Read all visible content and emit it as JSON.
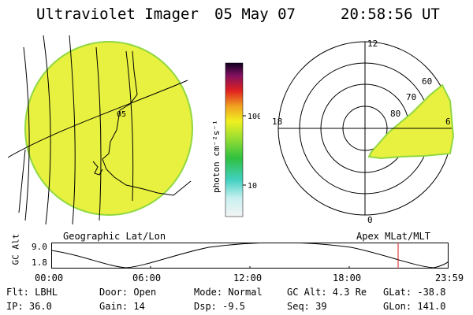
{
  "header": {
    "title": "Ultraviolet Imager",
    "date": "05 May 07",
    "time": "20:58:56 UT"
  },
  "geo_panel": {
    "caption": "Geographic Lat/Lon",
    "grid_label": "05"
  },
  "colorbar": {
    "unit_label": "photon cm⁻²s⁻¹",
    "ticks": [
      "100",
      "10"
    ]
  },
  "polar_panel": {
    "caption": "Apex MLat/MLT",
    "mlt_labels": [
      "12",
      "18",
      "6",
      "0"
    ],
    "mlat_labels": [
      "60",
      "70",
      "80"
    ]
  },
  "altitude_plot": {
    "ylabel": "GC Alt",
    "y_ticks": [
      "9.0",
      "1.8"
    ],
    "x_ticks": [
      "00:00",
      "06:00",
      "12:00",
      "18:00",
      "23:59"
    ]
  },
  "info": {
    "flt": "Flt: LBHL",
    "ip": "IP: 36.0",
    "door": "Door: Open",
    "gain": "Gain: 14",
    "mode": "Mode: Normal",
    "dsp": "Dsp:   -9.5",
    "gc_alt": "GC Alt: 4.3 Re",
    "seq": "Seq: 39",
    "glat": "GLat: -38.8",
    "glon": "GLon: 141.0"
  },
  "colors": {
    "image_fill": "#e8f040",
    "image_edge": "#90d840",
    "marker": "#d02020"
  }
}
